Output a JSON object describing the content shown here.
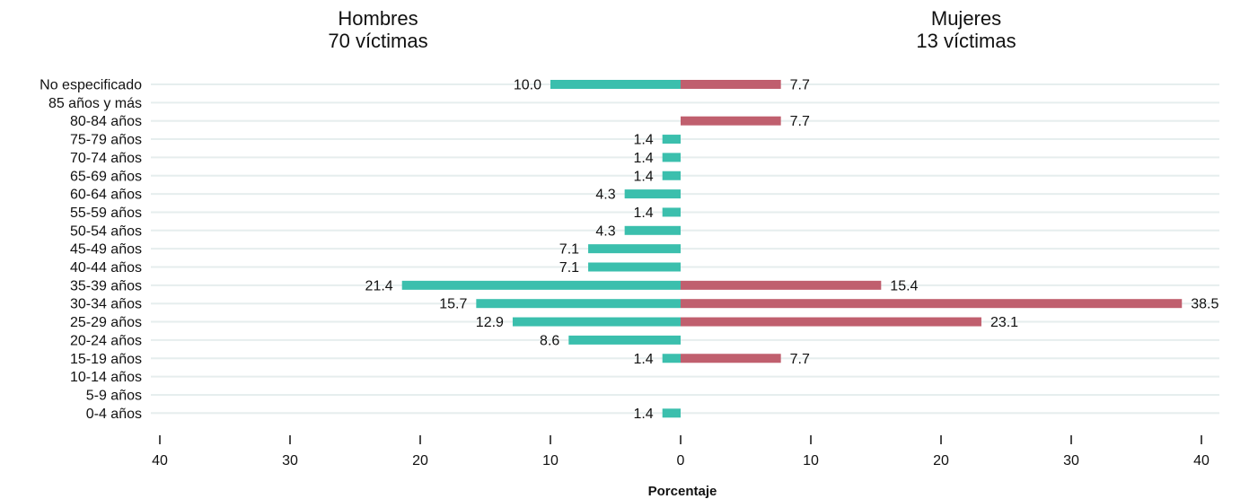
{
  "chart_data": {
    "type": "bar",
    "orientation": "horizontal-diverging",
    "categories": [
      "No especificado",
      "85 años y más",
      "80-84 años",
      "75-79 años",
      "70-74 años",
      "65-69 años",
      "60-64 años",
      "55-59 años",
      "50-54 años",
      "45-49 años",
      "40-44 años",
      "35-39 años",
      "30-34 años",
      "25-29 años",
      "20-24 años",
      "15-19 años",
      "10-14 años",
      "5-9 años",
      "0-4 años"
    ],
    "series": [
      {
        "name": "Hombres",
        "subtitle": "70 víctimas",
        "side": "left",
        "color": "#3bbfad",
        "values": [
          10.0,
          null,
          null,
          1.4,
          1.4,
          1.4,
          4.3,
          1.4,
          4.3,
          7.1,
          7.1,
          21.4,
          15.7,
          12.9,
          8.6,
          1.4,
          null,
          null,
          1.4
        ],
        "labels": [
          "10.0",
          "",
          "",
          "1.4",
          "1.4",
          "1.4",
          "4.3",
          "1.4",
          "4.3",
          "7.1",
          "7.1",
          "21.4",
          "15.7",
          "12.9",
          "8.6",
          "1.4",
          "",
          "",
          "1.4"
        ]
      },
      {
        "name": "Mujeres",
        "subtitle": "13 víctimas",
        "side": "right",
        "color": "#c05f6e",
        "values": [
          7.7,
          null,
          7.7,
          null,
          null,
          null,
          null,
          null,
          null,
          null,
          null,
          15.4,
          38.5,
          23.1,
          null,
          7.7,
          null,
          null,
          null
        ],
        "labels": [
          "7.7",
          "",
          "7.7",
          "",
          "",
          "",
          "",
          "",
          "",
          "",
          "",
          "15.4",
          "38.5",
          "23.1",
          "",
          "7.7",
          "",
          "",
          ""
        ]
      }
    ],
    "xlabel": "Porcentaje",
    "ylabel": "",
    "xlim": [
      0,
      40
    ],
    "xticks": [
      40,
      30,
      20,
      10,
      0,
      10,
      20,
      30,
      40
    ],
    "grid": true,
    "gridline_color": "#e6eeee",
    "axis_color": "#111111"
  }
}
